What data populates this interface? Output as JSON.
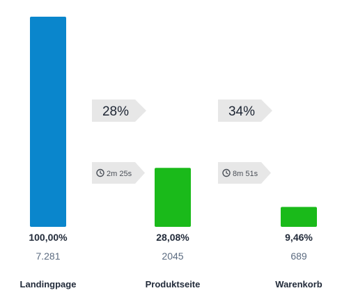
{
  "colors": {
    "first_stage": "#0a86cc",
    "other_stages": "#1aba1a",
    "tag_background": "#e7e7e7"
  },
  "chart_data": {
    "type": "bar",
    "categories": [
      "Landingpage",
      "Produktseite",
      "Warenkorb"
    ],
    "values": [
      100.0,
      28.08,
      9.46
    ],
    "value_labels": [
      "100,00%",
      "28,08%",
      "9,46%"
    ],
    "counts": [
      7281,
      2045,
      689
    ],
    "count_labels": [
      "7.281",
      "2045",
      "689"
    ],
    "ylim": [
      0,
      100
    ],
    "grid": false,
    "legend": "none",
    "transitions": [
      {
        "conversion": "28%",
        "time_icon": "clock-icon",
        "time": "2m 25s"
      },
      {
        "conversion": "34%",
        "time_icon": "clock-icon",
        "time": "8m 51s"
      }
    ]
  }
}
